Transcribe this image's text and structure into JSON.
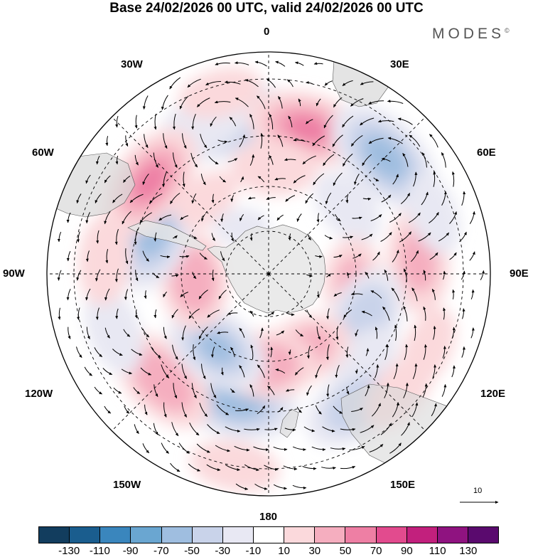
{
  "title": "Base 24/02/2026 00 UTC, valid 24/02/2026 00 UTC",
  "brand": "MODES",
  "brand_mark": "©",
  "longitude_labels": {
    "lon_0": "0",
    "lon_30e": "30E",
    "lon_60e": "60E",
    "lon_90e": "90E",
    "lon_120e": "120E",
    "lon_150e": "150E",
    "lon_180": "180",
    "lon_150w": "150W",
    "lon_120w": "120W",
    "lon_90w": "90W",
    "lon_60w": "60W",
    "lon_30w": "30W"
  },
  "reference_vector": {
    "label": "10"
  },
  "colorbar": {
    "colors": [
      "#123d5e",
      "#1a5d8e",
      "#3a86bd",
      "#6aa6d1",
      "#9fbee0",
      "#c9d3ea",
      "#e8e8f3",
      "#ffffff",
      "#fbd9dc",
      "#f5aebf",
      "#ee7fa4",
      "#e24b8e",
      "#c2207d",
      "#8f1380",
      "#5a0a6e"
    ],
    "ticks": [
      "-130",
      "-110",
      "-90",
      "-70",
      "-50",
      "-30",
      "-10",
      "10",
      "30",
      "50",
      "70",
      "90",
      "110",
      "130"
    ]
  },
  "anomaly_centers": [
    {
      "lat": -40,
      "lon": -15,
      "value": -55
    },
    {
      "lat": -38,
      "lon": -22,
      "value": -25
    },
    {
      "lat": -42,
      "lon": 15,
      "value": 50
    },
    {
      "lat": -55,
      "lon": 3,
      "value": 25
    },
    {
      "lat": -38,
      "lon": 45,
      "value": -55
    },
    {
      "lat": -56,
      "lon": 50,
      "value": -20
    },
    {
      "lat": -42,
      "lon": 85,
      "value": 35
    },
    {
      "lat": -62,
      "lon": 95,
      "value": 30
    },
    {
      "lat": -55,
      "lon": 115,
      "value": -45
    },
    {
      "lat": -48,
      "lon": 132,
      "value": -15
    },
    {
      "lat": -62,
      "lon": 155,
      "value": 40
    },
    {
      "lat": -40,
      "lon": 145,
      "value": -45
    },
    {
      "lat": -35,
      "lon": 132,
      "value": 15
    },
    {
      "lat": -48,
      "lon": -165,
      "value": -60
    },
    {
      "lat": -60,
      "lon": -178,
      "value": 45
    },
    {
      "lat": -42,
      "lon": -135,
      "value": 45
    },
    {
      "lat": -60,
      "lon": -145,
      "value": -50
    },
    {
      "lat": -38,
      "lon": -110,
      "value": -20
    },
    {
      "lat": -65,
      "lon": -95,
      "value": 45
    },
    {
      "lat": -50,
      "lon": -70,
      "value": -55
    },
    {
      "lat": -42,
      "lon": -52,
      "value": 50
    },
    {
      "lat": -38,
      "lon": -85,
      "value": 20
    },
    {
      "lat": -58,
      "lon": -40,
      "value": 10
    },
    {
      "lat": -32,
      "lon": -15,
      "value": 12
    },
    {
      "lat": -72,
      "lon": -30,
      "value": -8
    },
    {
      "lat": -35,
      "lon": 115,
      "value": 12
    },
    {
      "lat": -35,
      "lon": 70,
      "value": -12
    },
    {
      "lat": -30,
      "lon": -170,
      "value": 15
    }
  ]
}
